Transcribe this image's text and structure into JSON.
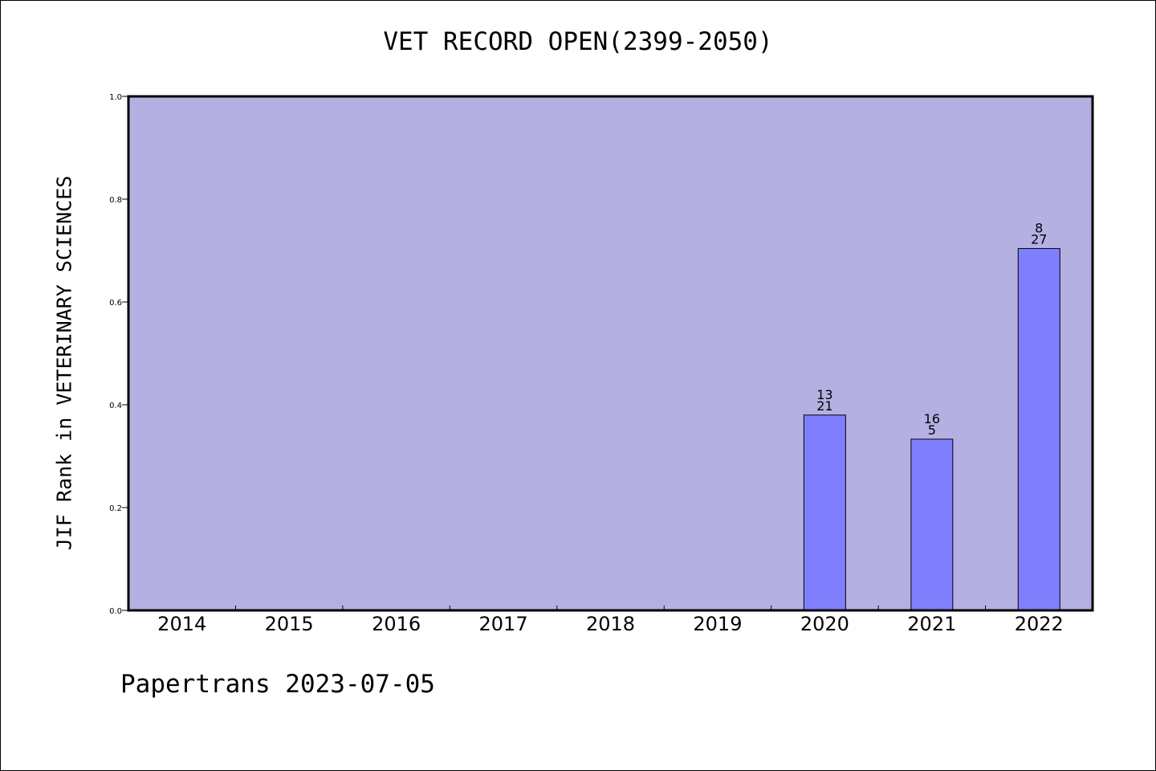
{
  "title": "VET RECORD OPEN(2399-2050)",
  "footer": "Papertrans 2023-07-05",
  "colors": {
    "plot_background": "#b5b0e2",
    "bar_fill": "#8080ff",
    "axis": "#000000"
  },
  "chart_data": {
    "type": "bar",
    "title": "VET RECORD OPEN(2399-2050)",
    "xlabel": "",
    "ylabel": "JIF Rank in VETERINARY SCIENCES",
    "ylim": [
      0,
      1.0
    ],
    "yticks": [
      "0.0",
      "0.2",
      "0.4",
      "0.6",
      "0.8",
      "1.0"
    ],
    "grid": false,
    "categories": [
      "2014",
      "2015",
      "2016",
      "2017",
      "2018",
      "2019",
      "2020",
      "2021",
      "2022"
    ],
    "values": [
      null,
      null,
      null,
      null,
      null,
      null,
      0.38,
      0.333,
      0.704
    ],
    "annotations": [
      null,
      null,
      null,
      null,
      null,
      null,
      [
        "13",
        "21"
      ],
      [
        "16",
        "5"
      ],
      [
        "8",
        "27"
      ]
    ]
  }
}
